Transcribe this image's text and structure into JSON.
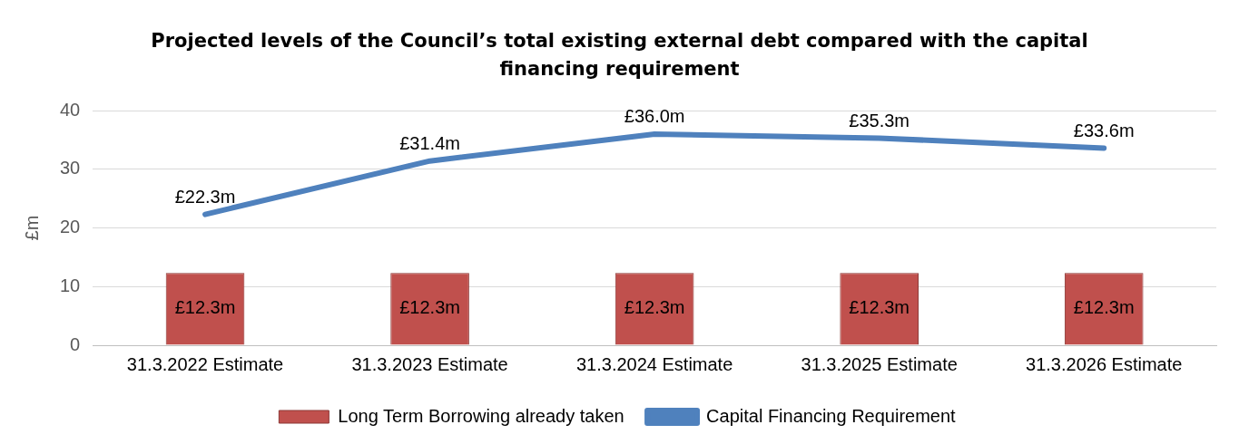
{
  "chart_data": {
    "type": "bar",
    "title": "Projected levels of the Council’s total existing external debt compared with the capital financing requirement",
    "ylabel": "£m",
    "categories": [
      "31.3.2022 Estimate",
      "31.3.2023 Estimate",
      "31.3.2024 Estimate",
      "31.3.2025 Estimate",
      "31.3.2026 Estimate"
    ],
    "series": [
      {
        "name": "Long Term Borrowing already taken",
        "color": "#c0504d",
        "values": [
          12.3,
          12.3,
          12.3,
          12.3,
          12.3
        ],
        "value_labels": [
          "£12.3m",
          "£12.3m",
          "£12.3m",
          "£12.3m",
          "£12.3m"
        ]
      },
      {
        "name": "Capital Financing Requirement",
        "type": "line",
        "color": "#4f81bd",
        "values": [
          22.3,
          31.4,
          36.0,
          35.3,
          33.6
        ],
        "value_labels": [
          "£22.3m",
          "£31.4m",
          "£36.0m",
          "£35.3m",
          "£33.6m"
        ]
      }
    ],
    "ylim": [
      0,
      40
    ],
    "yticks": [
      0,
      10,
      20,
      30,
      40
    ],
    "grid": "y",
    "legend": "bottom",
    "marker": "none"
  }
}
